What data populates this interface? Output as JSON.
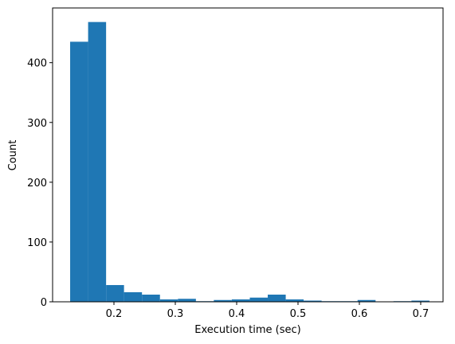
{
  "chart_data": {
    "type": "histogram",
    "x_label": "Execution time (sec)",
    "y_label": "Count",
    "bins": [
      0.1286,
      0.1579,
      0.1872,
      0.2164,
      0.2457,
      0.275,
      0.3043,
      0.3336,
      0.3628,
      0.3921,
      0.4214,
      0.4507,
      0.48,
      0.5092,
      0.5385,
      0.5678,
      0.5971,
      0.6264,
      0.6556,
      0.6849,
      0.7142
    ],
    "values": [
      435,
      468,
      28,
      16,
      12,
      4,
      5,
      1,
      3,
      4,
      7,
      12,
      4,
      2,
      1,
      1,
      3,
      0,
      1,
      2
    ],
    "color": "#1f77b4",
    "xlim": [
      0.1,
      0.7364
    ],
    "ylim": [
      0,
      491.5
    ],
    "xticks": [
      0.2,
      0.3,
      0.4,
      0.5,
      0.6,
      0.7
    ],
    "yticks": [
      0,
      100,
      200,
      300,
      400
    ]
  }
}
